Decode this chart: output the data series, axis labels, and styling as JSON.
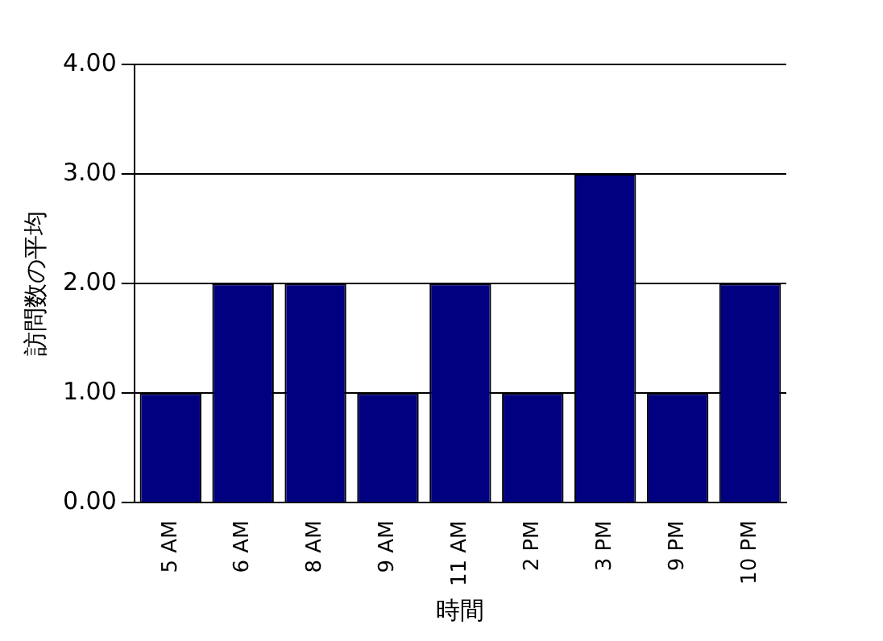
{
  "chart_data": {
    "type": "bar",
    "categories": [
      "5 AM",
      "6 AM",
      "8 AM",
      "9 AM",
      "11 AM",
      "2 PM",
      "3 PM",
      "9 PM",
      "10 PM"
    ],
    "values": [
      1,
      2,
      2,
      1,
      2,
      1,
      3,
      1,
      2
    ],
    "color": "#000080",
    "xlabel": "時間",
    "ylabel": "訪問数の平均",
    "ylim": [
      0,
      4
    ],
    "yticks": [
      {
        "value": 0,
        "label": "0.00"
      },
      {
        "value": 1,
        "label": "1.00"
      },
      {
        "value": 2,
        "label": "2.00"
      },
      {
        "value": 3,
        "label": "3.00"
      },
      {
        "value": 4,
        "label": "4.00"
      }
    ],
    "grid": "y",
    "legend": false
  }
}
